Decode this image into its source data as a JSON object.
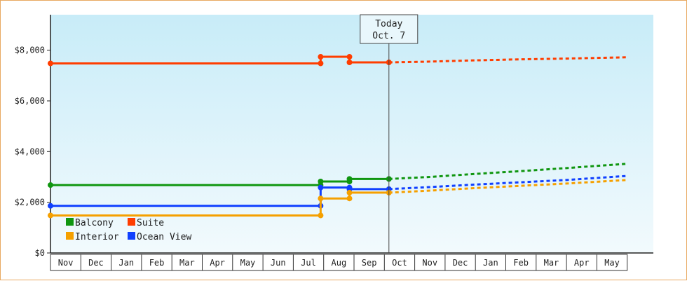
{
  "chart_data": {
    "type": "line",
    "title": "",
    "xlabel": "",
    "ylabel": "",
    "ylim": [
      0,
      9400
    ],
    "y_ticks": [
      0,
      2000,
      4000,
      6000,
      8000
    ],
    "y_tick_labels": [
      "$0",
      "$2,000",
      "$4,000",
      "$6,000",
      "$8,000"
    ],
    "x_months": [
      "Nov",
      "Dec",
      "Jan",
      "Feb",
      "Mar",
      "Apr",
      "May",
      "Jun",
      "Jul",
      "Aug",
      "Sep",
      "Oct",
      "Nov",
      "Dec",
      "Jan",
      "Feb",
      "Mar",
      "Apr",
      "May"
    ],
    "today_label": "Today",
    "today_date": "Oct. 7",
    "today_month_index": 11.15,
    "grid": false,
    "legend_position": "bottom-left",
    "series": [
      {
        "name": "Suite",
        "color": "#ff3d00",
        "history": [
          [
            0,
            7480
          ],
          [
            8.9,
            7480
          ],
          [
            8.9,
            7740
          ],
          [
            9.85,
            7740
          ],
          [
            9.85,
            7520
          ],
          [
            11.15,
            7520
          ]
        ],
        "forecast": [
          [
            11.15,
            7520
          ],
          [
            12.5,
            7550
          ],
          [
            14,
            7600
          ],
          [
            15.5,
            7640
          ],
          [
            17,
            7670
          ],
          [
            19,
            7720
          ]
        ]
      },
      {
        "name": "Balcony",
        "color": "#109610",
        "history": [
          [
            0,
            2680
          ],
          [
            8.9,
            2680
          ],
          [
            8.9,
            2820
          ],
          [
            9.85,
            2820
          ],
          [
            9.85,
            2920
          ],
          [
            11.15,
            2920
          ]
        ],
        "forecast": [
          [
            11.15,
            2920
          ],
          [
            12.5,
            3000
          ],
          [
            14,
            3120
          ],
          [
            15.5,
            3230
          ],
          [
            17,
            3350
          ],
          [
            19,
            3520
          ]
        ]
      },
      {
        "name": "Ocean View",
        "color": "#1040ff",
        "history": [
          [
            0,
            1860
          ],
          [
            8.9,
            1860
          ],
          [
            8.9,
            2580
          ],
          [
            9.85,
            2580
          ],
          [
            9.85,
            2520
          ],
          [
            11.15,
            2520
          ]
        ],
        "forecast": [
          [
            11.15,
            2520
          ],
          [
            12.5,
            2600
          ],
          [
            14,
            2700
          ],
          [
            15.5,
            2790
          ],
          [
            17,
            2880
          ],
          [
            19,
            3040
          ]
        ]
      },
      {
        "name": "Interior",
        "color": "#f5a000",
        "history": [
          [
            0,
            1480
          ],
          [
            8.9,
            1480
          ],
          [
            8.9,
            2150
          ],
          [
            9.85,
            2150
          ],
          [
            9.85,
            2380
          ],
          [
            11.15,
            2380
          ]
        ],
        "forecast": [
          [
            11.15,
            2380
          ],
          [
            12.5,
            2460
          ],
          [
            14,
            2560
          ],
          [
            15.5,
            2650
          ],
          [
            17,
            2740
          ],
          [
            19,
            2880
          ]
        ]
      }
    ],
    "legend": [
      {
        "name": "Balcony",
        "color": "#109610"
      },
      {
        "name": "Suite",
        "color": "#ff3d00"
      },
      {
        "name": "Interior",
        "color": "#f5a000"
      },
      {
        "name": "Ocean View",
        "color": "#1040ff"
      }
    ]
  }
}
